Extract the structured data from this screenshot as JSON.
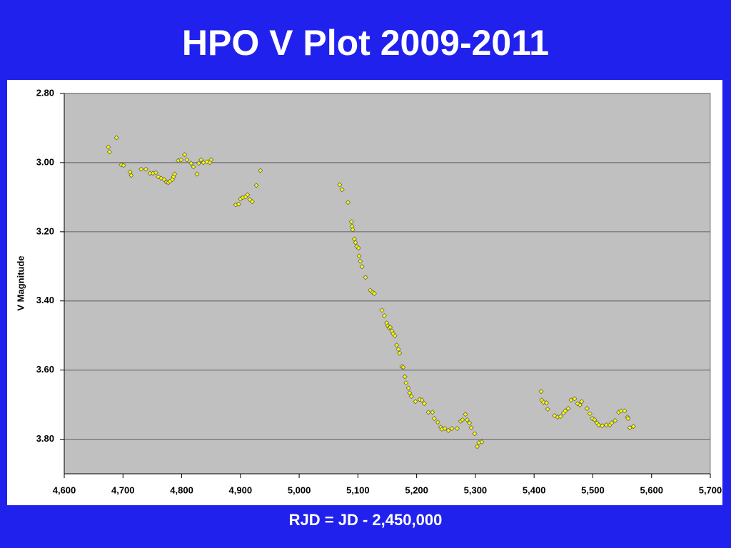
{
  "chart_data": {
    "type": "scatter",
    "title": "HPO V Plot 2009-2011",
    "xlabel": "RJD = JD - 2,450,000",
    "ylabel": "V Magnitude",
    "color": "#ffff00",
    "grid": true,
    "y_inverted": true,
    "xlim": [
      4600,
      5700
    ],
    "ylim": [
      2.8,
      3.9
    ],
    "xticks": [
      {
        "value": 4600,
        "label": "4,600"
      },
      {
        "value": 4700,
        "label": "4,700"
      },
      {
        "value": 4800,
        "label": "4,800"
      },
      {
        "value": 4900,
        "label": "4,900"
      },
      {
        "value": 5000,
        "label": "5,000"
      },
      {
        "value": 5100,
        "label": "5,100"
      },
      {
        "value": 5200,
        "label": "5,200"
      },
      {
        "value": 5300,
        "label": "5,300"
      },
      {
        "value": 5400,
        "label": "5,400"
      },
      {
        "value": 5500,
        "label": "5,500"
      },
      {
        "value": 5600,
        "label": "5,600"
      },
      {
        "value": 5700,
        "label": "5,700"
      }
    ],
    "yticks": [
      {
        "value": 2.8,
        "label": "2.80"
      },
      {
        "value": 3.0,
        "label": "3.00"
      },
      {
        "value": 3.2,
        "label": "3.20"
      },
      {
        "value": 3.4,
        "label": "3.40"
      },
      {
        "value": 3.6,
        "label": "3.60"
      },
      {
        "value": 3.8,
        "label": "3.80"
      }
    ],
    "x": [
      4675,
      4677,
      4689,
      4697,
      4701,
      4712,
      4714,
      4731,
      4739,
      4746,
      4751,
      4756,
      4760,
      4765,
      4770,
      4774,
      4777,
      4780,
      4784,
      4786,
      4788,
      4794,
      4799,
      4805,
      4809,
      4816,
      4820,
      4826,
      4829,
      4833,
      4837,
      4843,
      4848,
      4850,
      4892,
      4897,
      4900,
      4904,
      4909,
      4912,
      4916,
      4920,
      4927,
      4934,
      5069,
      5073,
      5083,
      5089,
      5090,
      5091,
      5094,
      5096,
      5098,
      5101,
      5102,
      5104,
      5107,
      5113,
      5121,
      5125,
      5128,
      5141,
      5145,
      5149,
      5151,
      5153,
      5155,
      5158,
      5160,
      5163,
      5166,
      5169,
      5171,
      5175,
      5177,
      5180,
      5182,
      5186,
      5188,
      5191,
      5198,
      5205,
      5209,
      5213,
      5220,
      5227,
      5230,
      5236,
      5241,
      5243,
      5248,
      5254,
      5260,
      5269,
      5275,
      5278,
      5283,
      5286,
      5290,
      5293,
      5299,
      5303,
      5306,
      5311,
      5412,
      5413,
      5416,
      5421,
      5423,
      5435,
      5440,
      5445,
      5450,
      5453,
      5458,
      5463,
      5469,
      5474,
      5478,
      5481,
      5490,
      5495,
      5499,
      5503,
      5507,
      5510,
      5516,
      5523,
      5529,
      5532,
      5538,
      5544,
      5548,
      5554,
      5559,
      5560,
      5563,
      5569
    ],
    "values": [
      2.955,
      2.969,
      2.928,
      3.006,
      3.008,
      3.027,
      3.037,
      3.019,
      3.019,
      3.031,
      3.031,
      3.029,
      3.041,
      3.045,
      3.049,
      3.056,
      3.058,
      3.054,
      3.049,
      3.041,
      3.033,
      2.994,
      2.992,
      2.977,
      2.992,
      3.002,
      3.012,
      3.033,
      3.002,
      2.992,
      3.0,
      2.998,
      3.0,
      2.992,
      3.122,
      3.12,
      3.105,
      3.101,
      3.099,
      3.093,
      3.107,
      3.113,
      3.066,
      3.023,
      3.064,
      3.078,
      3.115,
      3.171,
      3.184,
      3.194,
      3.221,
      3.231,
      3.243,
      3.247,
      3.27,
      3.285,
      3.301,
      3.332,
      3.369,
      3.375,
      3.379,
      3.427,
      3.443,
      3.464,
      3.472,
      3.478,
      3.476,
      3.487,
      3.495,
      3.501,
      3.528,
      3.54,
      3.551,
      3.59,
      3.592,
      3.619,
      3.637,
      3.652,
      3.666,
      3.676,
      3.691,
      3.685,
      3.687,
      3.697,
      3.722,
      3.722,
      3.74,
      3.751,
      3.765,
      3.771,
      3.769,
      3.775,
      3.769,
      3.769,
      3.748,
      3.744,
      3.728,
      3.744,
      3.753,
      3.767,
      3.784,
      3.821,
      3.81,
      3.808,
      3.662,
      3.687,
      3.693,
      3.695,
      3.713,
      3.732,
      3.736,
      3.734,
      3.724,
      3.718,
      3.711,
      3.687,
      3.683,
      3.697,
      3.701,
      3.691,
      3.711,
      3.726,
      3.74,
      3.744,
      3.753,
      3.759,
      3.761,
      3.759,
      3.759,
      3.753,
      3.746,
      3.722,
      3.718,
      3.718,
      3.736,
      3.74,
      3.767,
      3.763
    ]
  }
}
